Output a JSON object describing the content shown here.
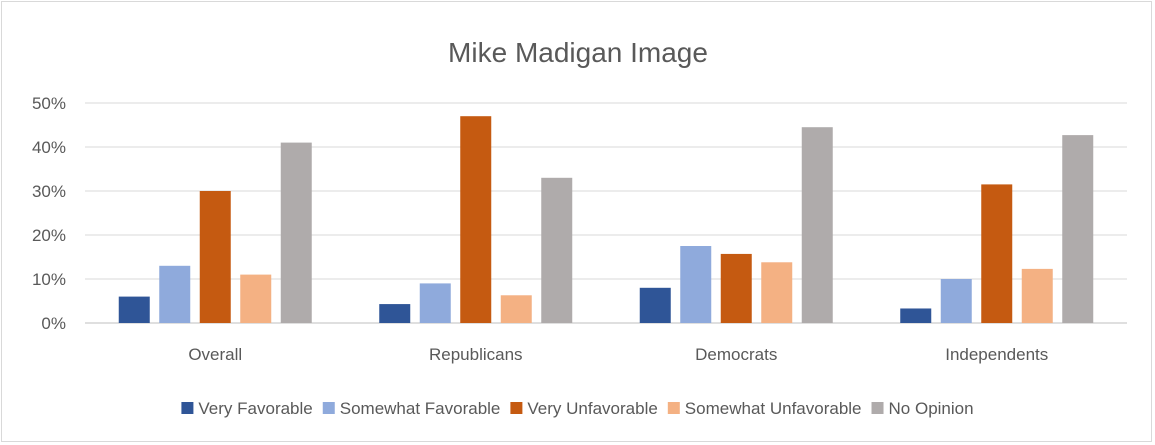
{
  "chart_data": {
    "type": "bar",
    "title": "Mike Madigan Image",
    "xlabel": "",
    "ylabel": "",
    "categories": [
      "Overall",
      "Republicans",
      "Democrats",
      "Independents"
    ],
    "ylim": [
      0,
      50
    ],
    "yticks": [
      "0%",
      "10%",
      "20%",
      "30%",
      "40%",
      "50%"
    ],
    "grid": true,
    "legend_position": "bottom",
    "series": [
      {
        "name": "Very Favorable",
        "color": "#2f5597",
        "values": [
          6,
          4.3,
          8,
          3.3
        ]
      },
      {
        "name": "Somewhat Favorable",
        "color": "#8faadc",
        "values": [
          13,
          9,
          17.5,
          10
        ]
      },
      {
        "name": "Very Unfavorable",
        "color": "#c55a11",
        "values": [
          30,
          47,
          15.7,
          31.5
        ]
      },
      {
        "name": "Somewhat Unfavorable",
        "color": "#f4b183",
        "values": [
          11,
          6.3,
          13.8,
          12.3
        ]
      },
      {
        "name": "No Opinion",
        "color": "#afabab",
        "values": [
          41,
          33,
          44.5,
          42.7
        ]
      }
    ]
  }
}
